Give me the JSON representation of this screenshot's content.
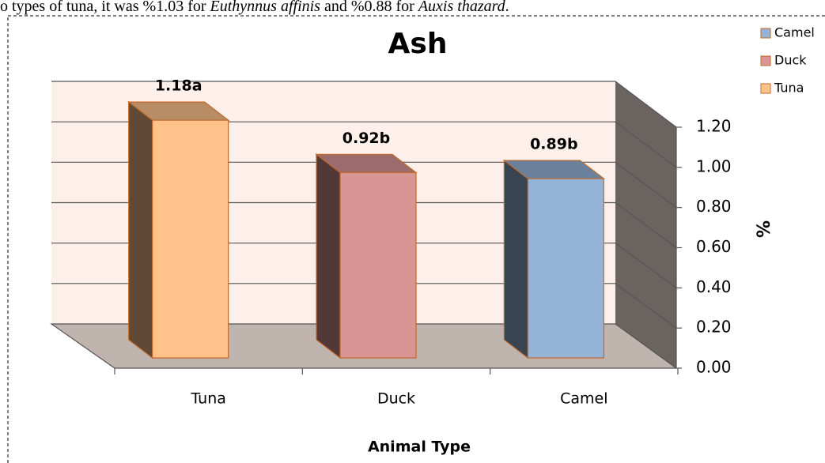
{
  "header_text": {
    "parts": [
      "o types of tuna, it was %1.03 for ",
      "Euthynnus affinis",
      " and %0.88 for ",
      "Auxis thazard",
      "."
    ]
  },
  "chart_data": {
    "type": "bar3d",
    "title": "Ash",
    "categories": [
      "Tuna",
      "Duck",
      "Camel"
    ],
    "values": [
      1.18,
      0.92,
      0.89
    ],
    "value_labels": [
      "1.18a",
      "0.92b",
      "0.89b"
    ],
    "colors": [
      "#ffc28b",
      "#d99594",
      "#95b3d7"
    ],
    "x_label": "Animal Type",
    "y_label": "%",
    "ylim": [
      0,
      1.2
    ],
    "yticks": [
      {
        "value": 0,
        "label": "0.00"
      },
      {
        "value": 0.2,
        "label": "0.20"
      },
      {
        "value": 0.4,
        "label": "0.40"
      },
      {
        "value": 0.6,
        "label": "0.60"
      },
      {
        "value": 0.8,
        "label": "0.80"
      },
      {
        "value": 1,
        "label": "1.00"
      },
      {
        "value": 1.2,
        "label": "1.20"
      }
    ],
    "grid": true,
    "legend": "top-right"
  }
}
